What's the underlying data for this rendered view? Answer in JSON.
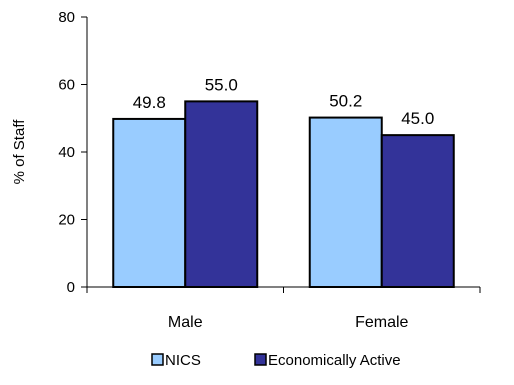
{
  "chart_data": {
    "type": "bar",
    "categories": [
      "Male",
      "Female"
    ],
    "series": [
      {
        "name": "NICS",
        "values": [
          49.8,
          50.2
        ],
        "labels": [
          "49.8",
          "50.2"
        ],
        "color": "#99ccff"
      },
      {
        "name": "Economically Active",
        "values": [
          55.0,
          45.0
        ],
        "labels": [
          "55.0",
          "45.0"
        ],
        "color": "#333399"
      }
    ],
    "title": "",
    "xlabel": "",
    "ylabel": "% of Staff",
    "ylim": [
      0,
      80
    ],
    "yticks": [
      0,
      20,
      40,
      60,
      80
    ],
    "ytick_labels": [
      "0",
      "20",
      "40",
      "60",
      "80"
    ],
    "grid": false,
    "legend": "bottom"
  }
}
